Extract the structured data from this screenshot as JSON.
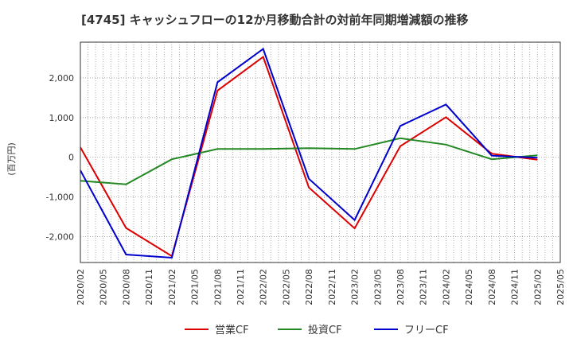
{
  "chart_data": {
    "type": "line",
    "title": "[4745]  キャッシュフローの12か月移動合計の対前年同期増減額の推移",
    "ylabel": "(百万円)",
    "xlabel": "",
    "x_ticks": [
      "2020/02",
      "2020/05",
      "2020/08",
      "2020/11",
      "2021/02",
      "2021/05",
      "2021/08",
      "2021/11",
      "2022/02",
      "2022/05",
      "2022/08",
      "2022/11",
      "2023/02",
      "2023/05",
      "2023/08",
      "2023/11",
      "2024/02",
      "2024/05",
      "2024/08",
      "2024/11",
      "2025/02",
      "2025/05"
    ],
    "y_ticks": [
      -2000,
      -1000,
      0,
      1000,
      2000
    ],
    "y_tick_labels": [
      "-2,000",
      "-1,000",
      "0",
      "1,000",
      "2,000"
    ],
    "ylim": [
      -2650,
      2900
    ],
    "grid": true,
    "legend_position": "bottom",
    "x": [
      "2020/02",
      "2020/08",
      "2021/02",
      "2021/08",
      "2022/02",
      "2022/08",
      "2023/02",
      "2023/08",
      "2024/02",
      "2024/08",
      "2025/02"
    ],
    "series": [
      {
        "name": "営業CF",
        "color": "#dd0000",
        "values": [
          250,
          -1780,
          -2490,
          1680,
          2530,
          -760,
          -1790,
          280,
          1010,
          90,
          -60
        ]
      },
      {
        "name": "投資CF",
        "color": "#228822",
        "values": [
          -590,
          -680,
          -50,
          210,
          210,
          230,
          210,
          480,
          320,
          -50,
          50
        ]
      },
      {
        "name": "フリーCF",
        "color": "#0000cc",
        "values": [
          -330,
          -2450,
          -2530,
          1890,
          2730,
          -540,
          -1580,
          790,
          1330,
          40,
          -10
        ]
      }
    ]
  }
}
